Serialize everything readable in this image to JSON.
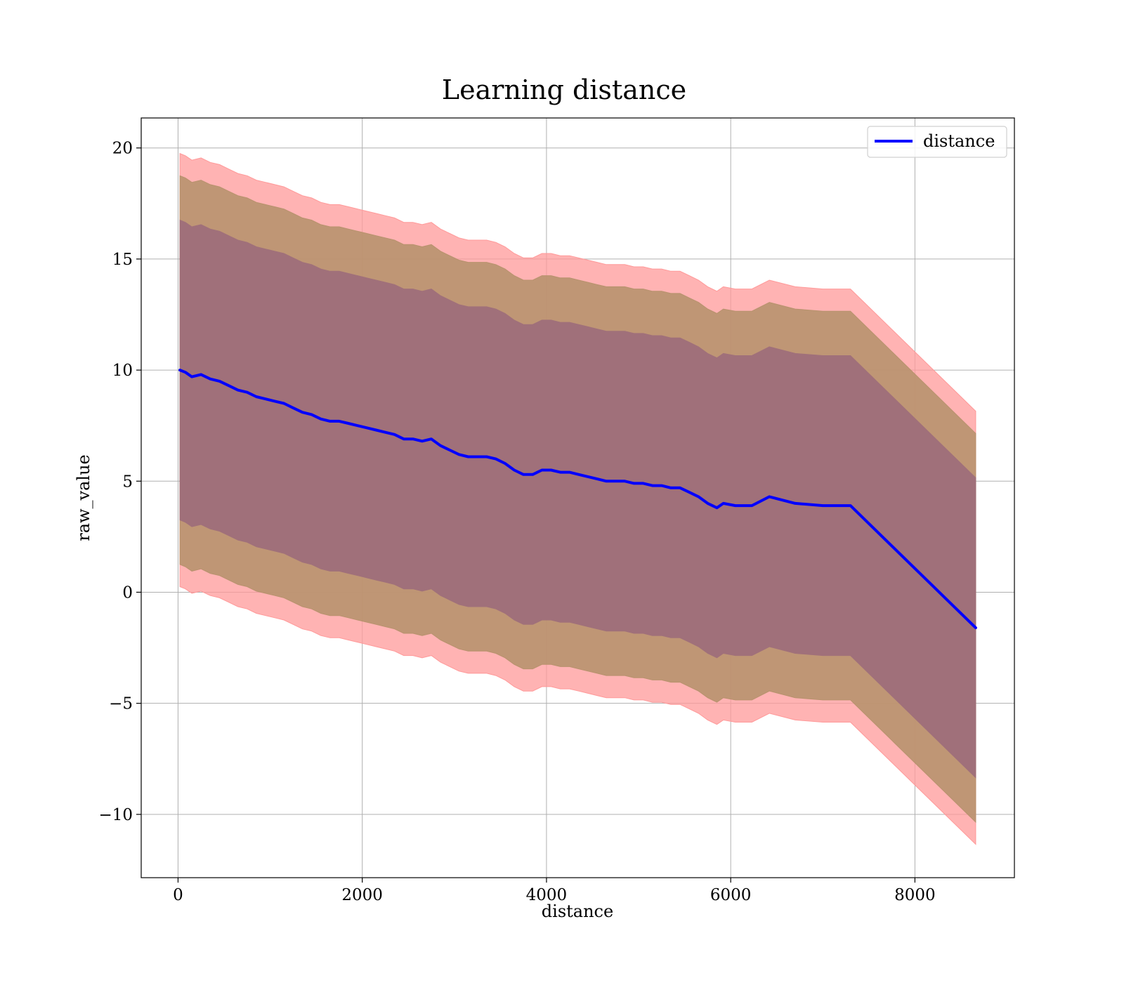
{
  "chart_data": {
    "type": "line",
    "title": "Learning distance",
    "xlabel": "distance",
    "ylabel": "raw_value",
    "xlim": [
      -400,
      9080
    ],
    "ylim": [
      -12.85,
      21.35
    ],
    "x_ticks": [
      {
        "value": 0,
        "label": "0"
      },
      {
        "value": 2000,
        "label": "2000"
      },
      {
        "value": 4000,
        "label": "4000"
      },
      {
        "value": 6000,
        "label": "6000"
      },
      {
        "value": 8000,
        "label": "8000"
      }
    ],
    "y_ticks": [
      {
        "value": -10,
        "label": "−10"
      },
      {
        "value": -5,
        "label": "−5"
      },
      {
        "value": 0,
        "label": "0"
      },
      {
        "value": 5,
        "label": "5"
      },
      {
        "value": 10,
        "label": "10"
      },
      {
        "value": 15,
        "label": "15"
      },
      {
        "value": 20,
        "label": "20"
      }
    ],
    "grid": true,
    "legend": {
      "position": "top-right",
      "entries": [
        "distance"
      ]
    },
    "colors": {
      "line": "#0000ff",
      "outer_band": "#ff9999",
      "middle_band": "#b8926e",
      "inner_band": "#a0707a",
      "grid": "#b0b0b0"
    },
    "series": [
      {
        "name": "distance",
        "x": [
          20,
          80,
          150,
          250,
          350,
          450,
          550,
          650,
          750,
          850,
          950,
          1050,
          1150,
          1250,
          1350,
          1450,
          1550,
          1650,
          1750,
          1850,
          1950,
          2050,
          2150,
          2250,
          2350,
          2450,
          2550,
          2650,
          2750,
          2850,
          2950,
          3050,
          3150,
          3250,
          3350,
          3450,
          3550,
          3650,
          3750,
          3850,
          3950,
          4050,
          4150,
          4250,
          4350,
          4450,
          4550,
          4650,
          4750,
          4850,
          4950,
          5050,
          5150,
          5250,
          5350,
          5450,
          5550,
          5650,
          5750,
          5850,
          5920,
          6050,
          6230,
          6420,
          6700,
          7000,
          7300,
          8660
        ],
        "y": [
          10.0,
          9.9,
          9.7,
          9.8,
          9.6,
          9.5,
          9.3,
          9.1,
          9.0,
          8.8,
          8.7,
          8.6,
          8.5,
          8.3,
          8.1,
          8.0,
          7.8,
          7.7,
          7.7,
          7.6,
          7.5,
          7.4,
          7.3,
          7.2,
          7.1,
          6.9,
          6.9,
          6.8,
          6.9,
          6.6,
          6.4,
          6.2,
          6.1,
          6.1,
          6.1,
          6.0,
          5.8,
          5.5,
          5.3,
          5.3,
          5.5,
          5.5,
          5.4,
          5.4,
          5.3,
          5.2,
          5.1,
          5.0,
          5.0,
          5.0,
          4.9,
          4.9,
          4.8,
          4.8,
          4.7,
          4.7,
          4.5,
          4.3,
          4.0,
          3.8,
          4.0,
          3.9,
          3.9,
          4.3,
          4.0,
          3.9,
          3.9,
          -1.6
        ]
      }
    ],
    "bands": [
      {
        "level": "outer",
        "upper_offset": 9.75,
        "lower_offset": 9.75
      },
      {
        "level": "middle",
        "upper_offset": 8.75,
        "lower_offset": 8.75
      },
      {
        "level": "inner",
        "upper_offset": 6.75,
        "lower_offset": 6.75
      }
    ]
  }
}
